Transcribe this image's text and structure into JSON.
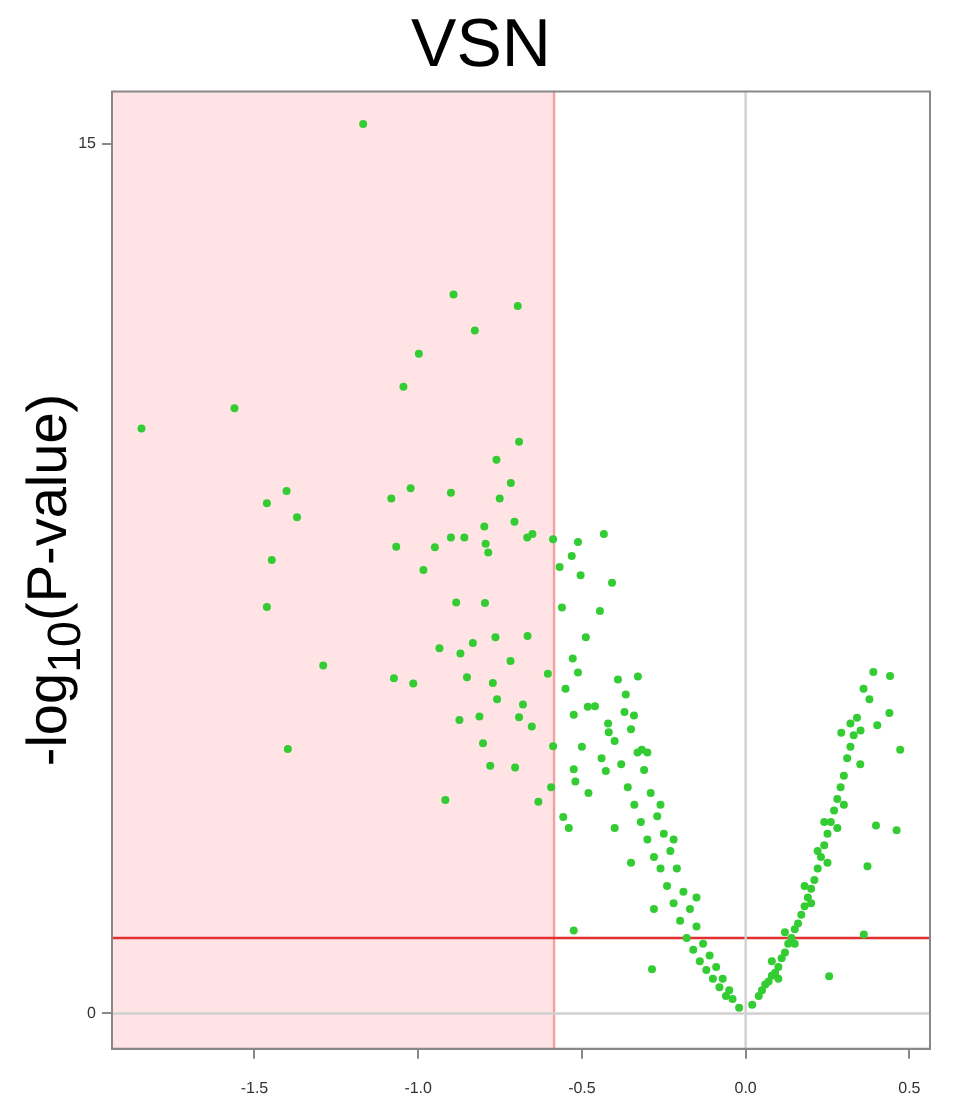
{
  "chart_data": {
    "type": "scatter",
    "title": "VSN",
    "ylabel": "-log$_{10}$(P-value)",
    "xlim": [
      -1.935,
      0.563
    ],
    "ylim": [
      -0.61,
      15.9
    ],
    "xticks": [
      {
        "value": -1.5,
        "label": "-1.5"
      },
      {
        "value": -1,
        "label": "-1.0"
      },
      {
        "value": -0.5,
        "label": "-0.5"
      },
      {
        "value": 0,
        "label": "0.0"
      },
      {
        "value": 0.5,
        "label": "0.5"
      }
    ],
    "yticks": [
      0,
      15
    ],
    "grid": false,
    "legend": false,
    "marker": "circle",
    "bands": [
      {
        "axis": "x",
        "from": -1.935,
        "to": -0.585,
        "color": "#ffe3e5"
      }
    ],
    "ref_lines": [
      {
        "axis": "x",
        "value": -0.585,
        "color": "#f4a0a0"
      },
      {
        "axis": "y",
        "value": 1.3,
        "color": "#e03030"
      },
      {
        "axis": "x",
        "value": 0,
        "color": "#d0d0d0"
      },
      {
        "axis": "y",
        "value": 0,
        "color": "#d0d0d0"
      }
    ],
    "series": [
      {
        "color": "#33cc33",
        "x": [
          -1.168,
          -0.892,
          -0.696,
          -0.827,
          -0.998,
          -1.045,
          -1.561,
          -1.845,
          -0.692,
          -0.761,
          -0.717,
          -1.402,
          -1.082,
          -1.023,
          -0.9,
          -0.751,
          -1.462,
          -1.37,
          -0.798,
          -0.706,
          -0.667,
          -0.651,
          -0.9,
          -0.859,
          -1.067,
          -0.949,
          -0.794,
          -0.786,
          -1.447,
          -0.984,
          -0.512,
          -0.433,
          -0.531,
          -0.504,
          -0.408,
          -0.568,
          -0.588,
          -1.462,
          -0.884,
          -0.796,
          -0.561,
          -0.445,
          -0.488,
          -0.666,
          -0.764,
          -0.833,
          -0.935,
          -0.871,
          -0.718,
          -1.29,
          -0.528,
          -0.512,
          -0.604,
          -1.074,
          -1.015,
          -0.851,
          -0.772,
          -0.39,
          -0.329,
          -0.366,
          -0.759,
          -0.68,
          -0.482,
          -0.525,
          -0.813,
          -0.874,
          -0.692,
          -0.653,
          -0.418,
          -0.341,
          -0.802,
          -0.588,
          -1.398,
          -0.317,
          -0.78,
          -0.704,
          -0.525,
          -0.427,
          -0.594,
          -0.917,
          -0.633,
          -0.557,
          -0.525,
          -0.286,
          0.255,
          0.361,
          0.39,
          0.441,
          0.378,
          0.439,
          0.402,
          0.472,
          0.461,
          0.351,
          0.292,
          0.398,
          0.372,
          -0.02,
          -0.04,
          -0.05,
          -0.06,
          -0.07,
          -0.08,
          -0.09,
          -0.1,
          -0.11,
          -0.12,
          -0.13,
          -0.14,
          -0.15,
          -0.16,
          -0.17,
          -0.18,
          -0.19,
          -0.2,
          -0.21,
          -0.22,
          -0.23,
          -0.24,
          -0.25,
          -0.26,
          -0.27,
          -0.28,
          -0.29,
          -0.3,
          -0.31,
          -0.32,
          -0.33,
          -0.34,
          -0.35,
          -0.36,
          -0.37,
          -0.38,
          -0.4,
          -0.42,
          -0.44,
          -0.46,
          -0.48,
          -0.5,
          -0.52,
          -0.54,
          -0.55,
          -0.22,
          -0.26,
          -0.3,
          -0.15,
          -0.35,
          -0.4,
          -0.28,
          0.02,
          0.04,
          0.05,
          0.06,
          0.07,
          0.08,
          0.09,
          0.1,
          0.11,
          0.12,
          0.13,
          0.14,
          0.15,
          0.16,
          0.17,
          0.18,
          0.19,
          0.2,
          0.21,
          0.22,
          0.23,
          0.24,
          0.25,
          0.26,
          0.27,
          0.28,
          0.29,
          0.3,
          0.31,
          0.32,
          0.33,
          0.34,
          0.12,
          0.15,
          0.18,
          0.2,
          0.22,
          0.25,
          0.28,
          0.3,
          0.32,
          0.35,
          0.36,
          0.24,
          0.08,
          0.1
        ],
        "values": [
          15.34,
          12.4,
          12.2,
          11.78,
          11.38,
          10.81,
          10.44,
          10.09,
          9.86,
          9.55,
          9.15,
          9.01,
          8.88,
          9.06,
          8.98,
          8.88,
          8.8,
          8.56,
          8.4,
          8.48,
          8.21,
          8.27,
          8.21,
          8.21,
          8.05,
          8.04,
          8.1,
          7.95,
          7.82,
          7.65,
          8.13,
          8.27,
          7.89,
          7.56,
          7.43,
          7.7,
          8.18,
          7.01,
          7.09,
          7.08,
          7.0,
          6.94,
          6.49,
          6.51,
          6.49,
          6.39,
          6.3,
          6.21,
          6.08,
          6.0,
          6.12,
          5.88,
          5.86,
          5.78,
          5.69,
          5.8,
          5.7,
          5.76,
          5.81,
          5.5,
          5.42,
          5.33,
          5.29,
          5.15,
          5.12,
          5.06,
          5.11,
          4.95,
          4.85,
          5.14,
          4.66,
          4.61,
          4.56,
          4.55,
          4.27,
          4.24,
          4.21,
          4.18,
          3.9,
          3.68,
          3.65,
          3.39,
          1.43,
          0.76,
          0.64,
          1.36,
          5.89,
          5.82,
          5.42,
          5.18,
          4.97,
          4.55,
          3.16,
          4.88,
          4.84,
          3.24,
          2.54,
          0.1,
          0.25,
          0.4,
          0.3,
          0.6,
          0.45,
          0.8,
          0.6,
          1.0,
          0.75,
          1.2,
          0.9,
          1.5,
          1.1,
          1.8,
          1.3,
          2.1,
          1.6,
          2.5,
          1.9,
          2.8,
          2.2,
          3.1,
          2.5,
          3.4,
          2.7,
          3.8,
          3.0,
          4.2,
          3.3,
          4.5,
          3.6,
          4.9,
          3.9,
          5.2,
          4.3,
          4.7,
          5.0,
          4.4,
          5.3,
          3.8,
          4.6,
          4.0,
          3.2,
          5.6,
          3.0,
          3.6,
          4.5,
          2.0,
          2.6,
          3.2,
          1.8,
          0.15,
          0.3,
          0.4,
          0.5,
          0.55,
          0.65,
          0.7,
          0.8,
          0.95,
          1.05,
          1.2,
          1.3,
          1.45,
          1.55,
          1.7,
          1.85,
          2.0,
          2.15,
          2.3,
          2.5,
          2.7,
          2.9,
          3.1,
          3.3,
          3.5,
          3.7,
          3.9,
          4.1,
          4.4,
          4.6,
          4.8,
          5.1,
          1.4,
          1.2,
          2.2,
          1.9,
          2.8,
          2.6,
          3.2,
          3.6,
          5.0,
          4.3,
          5.6,
          3.3,
          0.9,
          0.6
        ]
      }
    ]
  }
}
